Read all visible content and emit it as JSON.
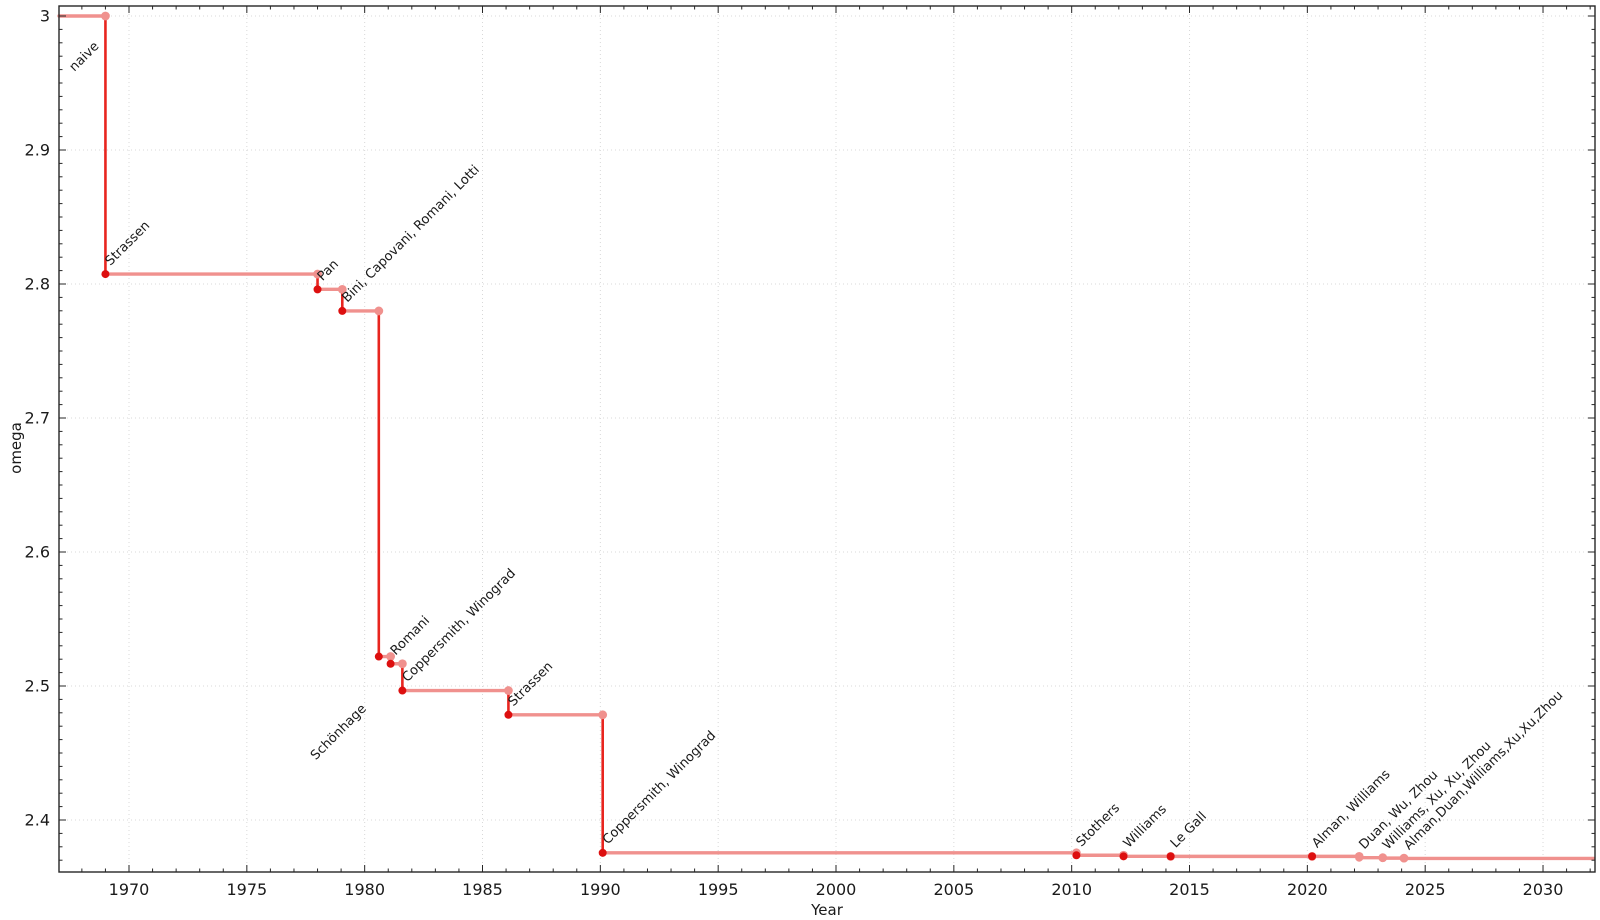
{
  "chart_data": {
    "type": "line",
    "subtype": "step-annotated",
    "title": "",
    "xlabel": "Year",
    "ylabel": "omega",
    "xlim": [
      1967.03,
      2032.21
    ],
    "ylim": [
      2.3612,
      3.0075
    ],
    "x_major_ticks": [
      1970,
      1975,
      1980,
      1985,
      1990,
      1995,
      2000,
      2005,
      2010,
      2015,
      2020,
      2025,
      2030
    ],
    "x_minor_step": 1,
    "y_major_ticks": [
      3.0,
      2.9,
      2.8,
      2.7,
      2.6,
      2.5,
      2.4
    ],
    "y_tick_labels": [
      "3",
      "2.9",
      "2.8",
      "2.7",
      "2.6",
      "2.5",
      "2.4"
    ],
    "y_minor_step": 0.01,
    "grid": {
      "show": true,
      "style": "dotted",
      "color": "#d8d8d8"
    },
    "legend": null,
    "initial": {
      "label": "naive",
      "omega": 3.0,
      "label_offset": [
        -31,
        56
      ]
    },
    "events": [
      {
        "label": "Strassen",
        "year": 1969.0,
        "omega": 2.8074,
        "faded": false
      },
      {
        "label": "Pan",
        "year": 1978.0,
        "omega": 2.796,
        "faded": false
      },
      {
        "label": "Bini, Capovani, Romani, Lotti",
        "year": 1979.05,
        "omega": 2.7799,
        "faded": false
      },
      {
        "label": "Schönhage",
        "year": 1980.6,
        "omega": 2.522,
        "faded": false,
        "label_offset": [
          -63,
          104
        ]
      },
      {
        "label": "Romani",
        "year": 1981.1,
        "omega": 2.5166,
        "faded": false
      },
      {
        "label": "Coppersmith, Winograd",
        "year": 1981.6,
        "omega": 2.4966,
        "faded": false
      },
      {
        "label": "Strassen",
        "year": 1986.1,
        "omega": 2.4785,
        "faded": false
      },
      {
        "label": "Coppersmith, Winograd",
        "year": 1990.1,
        "omega": 2.3755,
        "faded": false
      },
      {
        "label": "Stothers",
        "year": 2010.2,
        "omega": 2.3737,
        "faded": false
      },
      {
        "label": "Williams",
        "year": 2012.2,
        "omega": 2.37287,
        "faded": false
      },
      {
        "label": "Le Gall",
        "year": 2014.2,
        "omega": 2.37286,
        "faded": false
      },
      {
        "label": "Alman, Williams",
        "year": 2020.2,
        "omega": 2.372859,
        "faded": false
      },
      {
        "label": "Duan, Wu, Zhou",
        "year": 2022.2,
        "omega": 2.371866,
        "faded": true
      },
      {
        "label": "Williams, Xu, Xu, Zhou",
        "year": 2023.2,
        "omega": 2.371552,
        "faded": true
      },
      {
        "label": "Alman,Duan,Williams,Xu,Xu,Zhou",
        "year": 2024.1,
        "omega": 2.371339,
        "faded": true
      }
    ],
    "colors": {
      "step_line": "#f0918e",
      "drop_line": "#e8251f",
      "marker": "#dd0f0f",
      "marker_top": "#f0918e",
      "label": "#1a1a1a",
      "label_faded": "#9b9b9b",
      "axis": "#262626",
      "grid": "#d8d8d8",
      "background": "#ffffff"
    }
  }
}
